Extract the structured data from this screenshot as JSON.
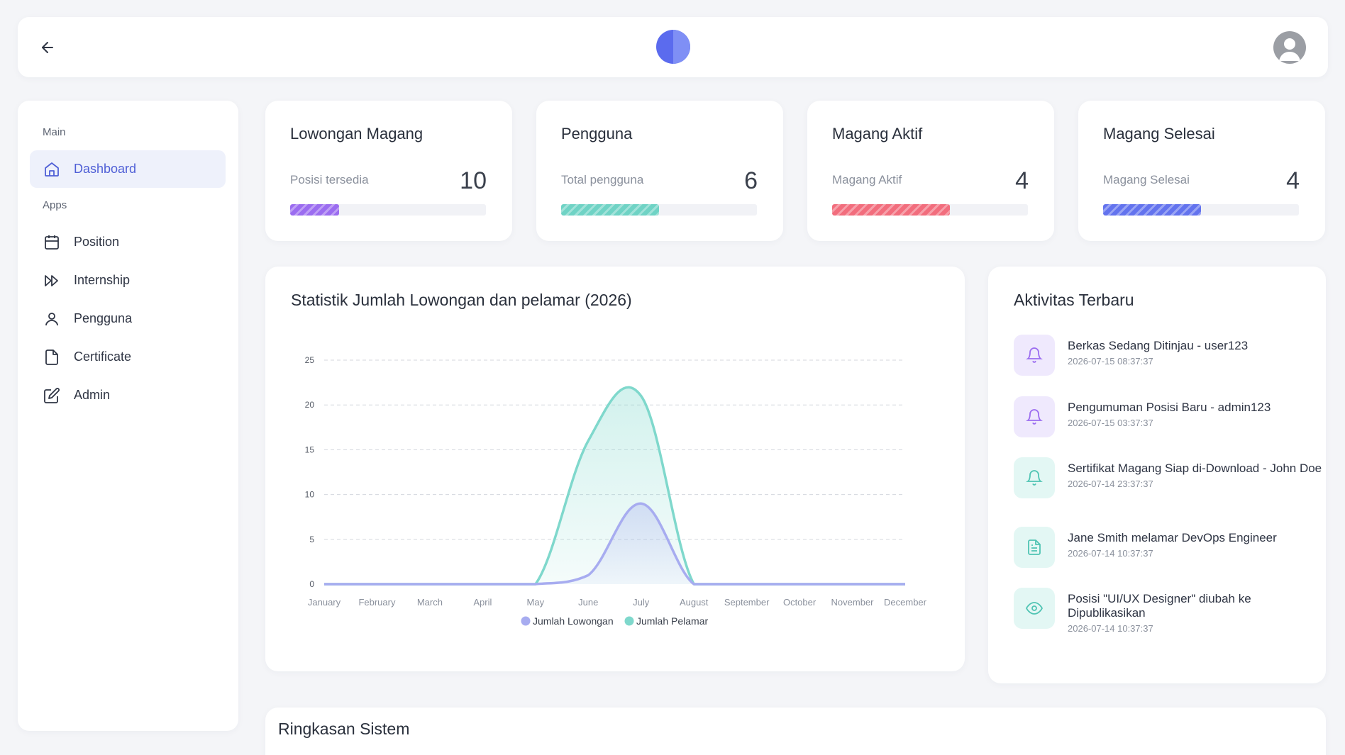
{
  "header": {
    "back_icon": "arrow-left-icon",
    "logo_icon": "half-circle-logo",
    "avatar_icon": "user-avatar-icon"
  },
  "sidebar": {
    "sections": [
      {
        "label": "Main"
      },
      {
        "label": "Apps"
      }
    ],
    "items": [
      {
        "label": "Dashboard",
        "icon": "home-icon",
        "active": true
      },
      {
        "label": "Position",
        "icon": "calendar-icon"
      },
      {
        "label": "Internship",
        "icon": "fast-forward-icon"
      },
      {
        "label": "Pengguna",
        "icon": "user-icon"
      },
      {
        "label": "Certificate",
        "icon": "file-icon"
      },
      {
        "label": "Admin",
        "icon": "edit-icon"
      }
    ]
  },
  "stats": [
    {
      "title": "Lowongan Magang",
      "subtitle": "Posisi tersedia",
      "value": "10",
      "progress": 0.25,
      "color": "#9b6cf0"
    },
    {
      "title": "Pengguna",
      "subtitle": "Total pengguna",
      "value": "6",
      "progress": 0.5,
      "color": "#6fd3c5"
    },
    {
      "title": "Magang Aktif",
      "subtitle": "Magang Aktif",
      "value": "4",
      "progress": 0.6,
      "color": "#f26d7d"
    },
    {
      "title": "Magang Selesai",
      "subtitle": "Magang Selesai",
      "value": "4",
      "progress": 0.5,
      "color": "#6373ee"
    }
  ],
  "chart_title": "Statistik Jumlah Lowongan dan pelamar (2026)",
  "chart_data": {
    "type": "area",
    "categories": [
      "January",
      "February",
      "March",
      "April",
      "May",
      "June",
      "July",
      "August",
      "September",
      "October",
      "November",
      "December"
    ],
    "series": [
      {
        "name": "Jumlah Lowongan",
        "values": [
          0,
          0,
          0,
          0,
          0,
          1,
          9,
          0,
          0,
          0,
          0,
          0
        ],
        "color": "#a7acf0"
      },
      {
        "name": "Jumlah Pelamar",
        "values": [
          0,
          0,
          0,
          0,
          0,
          16,
          21,
          0,
          0,
          0,
          0,
          0
        ],
        "color": "#7fd8cc"
      }
    ],
    "yticks": [
      0,
      5,
      10,
      15,
      20,
      25
    ],
    "ylim": [
      0,
      25
    ],
    "grid": true,
    "legend": "bottom"
  },
  "activity": {
    "title": "Aktivitas Terbaru",
    "items": [
      {
        "text": "Berkas Sedang Ditinjau - user123",
        "time": "2026-07-15 08:37:37",
        "icon": "bell-icon",
        "bg": "#efe9fd",
        "fg": "#9b6cf0"
      },
      {
        "text": "Pengumuman Posisi Baru - admin123",
        "time": "2026-07-15 03:37:37",
        "icon": "bell-icon",
        "bg": "#efe9fd",
        "fg": "#9b6cf0"
      },
      {
        "text": "Sertifikat Magang Siap di-Download - John Doe",
        "time": "2026-07-14 23:37:37",
        "icon": "bell-icon",
        "bg": "#e3f7f4",
        "fg": "#4fc4b3"
      },
      {
        "text": "Jane Smith melamar DevOps Engineer",
        "time": "2026-07-14 10:37:37",
        "icon": "document-icon",
        "bg": "#e3f7f4",
        "fg": "#4fc4b3"
      },
      {
        "text": "Posisi \"UI/UX Designer\" diubah ke Dipublikasikan",
        "time": "2026-07-14 10:37:37",
        "icon": "eye-icon",
        "bg": "#e3f7f4",
        "fg": "#4fc4b3"
      }
    ]
  },
  "summary": {
    "title": "Ringkasan Sistem"
  }
}
